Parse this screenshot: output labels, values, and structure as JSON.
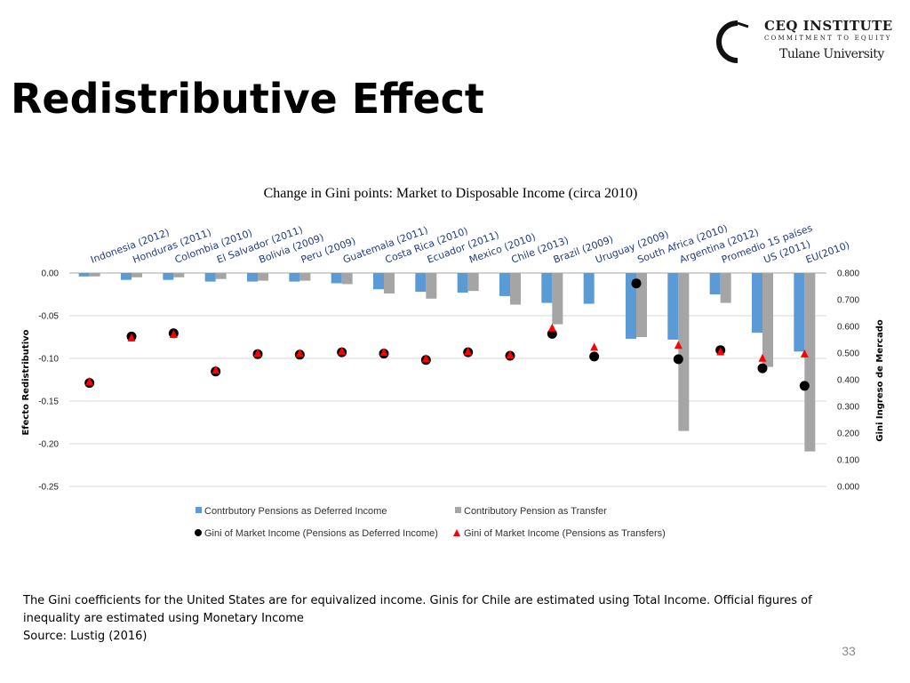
{
  "slide": {
    "title": "Redistributive Effect",
    "footnote": "The Gini coefficients for the United States are for equivalized income. Ginis for Chile are estimated using Total Income. Official figures of inequality are estimated using Monetary Income",
    "source": "Source: Lustig (2016)",
    "page_number": "33"
  },
  "logo": {
    "line1": "CEQ INSTITUTE",
    "line2": "COMMITMENT TO EQUITY",
    "line3": "Tulane University"
  },
  "colors": {
    "deferred_bar": "#5b9bd5",
    "transfer_bar": "#a5a5a5",
    "marker_deferred": "#000000",
    "marker_transfer": "#ff0000",
    "gridline": "#d9d9d9"
  },
  "chart_data": {
    "type": "bar",
    "title": "Change in Gini points: Market to Disposable Income (circa 2010)",
    "categories": [
      "Indonesia (2012)",
      "Honduras (2011)",
      "Colombia (2010)",
      "El Salvador (2011)",
      "Bolivia (2009)",
      "Peru (2009)",
      "Guatemala (2011)",
      "Costa Rica (2010)",
      "Ecuador (2011)",
      "Mexico (2010)",
      "Chile (2013)",
      "Brazil (2009)",
      "Uruguay (2009)",
      "South Africa (2010)",
      "Argentina (2012)",
      "Promedio 15 países",
      "US (2011)",
      "EU(2010)"
    ],
    "ylabel": "Efecto Redistributivo",
    "ylim": [
      -0.25,
      0.0
    ],
    "yticks": [
      "0.00",
      "-0.05",
      "-0.10",
      "-0.15",
      "-0.20",
      "-0.25"
    ],
    "ylabel2": "Gini Ingreso de Mercado",
    "ylim2": [
      0.0,
      0.8
    ],
    "yticks2": [
      "0.800",
      "0.700",
      "0.600",
      "0.500",
      "0.400",
      "0.300",
      "0.200",
      "0.100",
      "0.000"
    ],
    "bar_series": [
      {
        "name": "Contrbutory Pensions as Deferred Income",
        "values": [
          -0.004,
          -0.008,
          -0.008,
          -0.01,
          -0.01,
          -0.01,
          -0.012,
          -0.019,
          -0.022,
          -0.023,
          -0.027,
          -0.035,
          -0.036,
          -0.077,
          -0.078,
          -0.025,
          -0.07,
          -0.092
        ]
      },
      {
        "name": "Contributory Pension as Transfer",
        "values": [
          -0.004,
          -0.005,
          -0.005,
          -0.007,
          -0.009,
          -0.009,
          -0.013,
          -0.024,
          -0.03,
          -0.021,
          -0.037,
          -0.06,
          -0.075,
          -0.185,
          -0.035,
          -0.11,
          -0.209
        ]
      }
    ],
    "bar_series_slots": [
      [
        0,
        1,
        2,
        3,
        4,
        5,
        6,
        7,
        8,
        9,
        10,
        11,
        12,
        13,
        14,
        15,
        16,
        17
      ],
      [
        0,
        1,
        2,
        3,
        4,
        5,
        6,
        7,
        8,
        9,
        10,
        11,
        13,
        14,
        15,
        16,
        17
      ]
    ],
    "marker_series": [
      {
        "name": "Gini of Market Income (Pensions as Deferred Income)",
        "shape": "circle",
        "values": [
          0.388,
          0.562,
          0.574,
          0.431,
          0.496,
          0.494,
          0.503,
          0.498,
          0.474,
          0.503,
          0.49,
          0.572,
          0.487,
          0.761,
          0.477,
          0.511,
          0.443,
          0.377
        ]
      },
      {
        "name": "Gini of Market Income (Pensions as Transfers)",
        "shape": "triangle",
        "values": [
          0.393,
          0.557,
          0.57,
          0.436,
          0.5,
          0.499,
          0.507,
          0.503,
          0.479,
          0.506,
          0.493,
          0.594,
          0.522,
          0.529,
          0.505,
          0.481,
          0.497
        ]
      }
    ],
    "marker_series_slots": [
      [
        0,
        1,
        2,
        3,
        4,
        5,
        6,
        7,
        8,
        9,
        10,
        11,
        12,
        13,
        14,
        15,
        16,
        17
      ],
      [
        0,
        1,
        2,
        3,
        4,
        5,
        6,
        7,
        8,
        9,
        10,
        11,
        12,
        14,
        15,
        16,
        17
      ]
    ]
  }
}
